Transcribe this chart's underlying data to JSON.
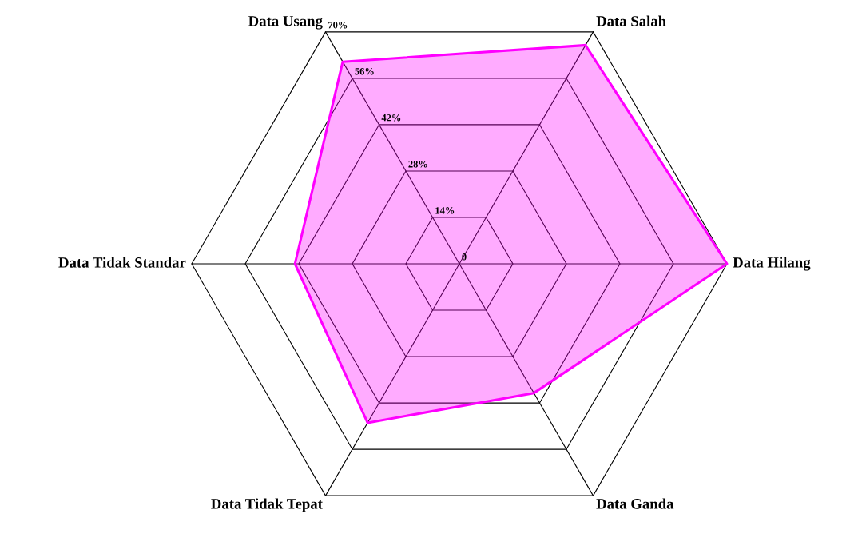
{
  "chart_data": {
    "type": "radar",
    "categories": [
      "Data Salah",
      "Data Hilang",
      "Data Ganda",
      "Data Tidak Tepat",
      "Data Tidak Standar",
      "Data Usang"
    ],
    "series": [
      {
        "color": "#ff00ff",
        "values": [
          66,
          70,
          39,
          48,
          43,
          61
        ]
      }
    ],
    "ylim": [
      0,
      70
    ],
    "yticks": [
      0,
      {
        "value": 14,
        "label": "14%"
      },
      {
        "value": 28,
        "label": "28%"
      },
      {
        "value": 42,
        "label": "42%"
      },
      {
        "value": 56,
        "label": "56%"
      },
      {
        "value": 70,
        "label": "70%"
      }
    ],
    "grid": true
  }
}
